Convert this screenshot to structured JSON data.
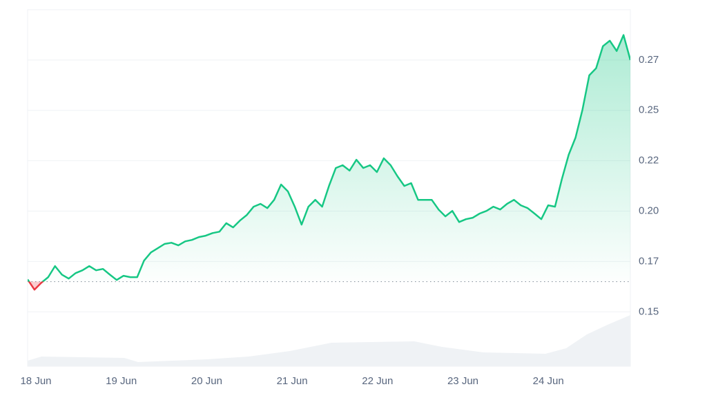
{
  "chart_data": {
    "type": "line",
    "x_labels": [
      "18 Jun",
      "19 Jun",
      "20 Jun",
      "21 Jun",
      "22 Jun",
      "23 Jun",
      "24 Jun"
    ],
    "ylim": [
      0.123,
      0.3
    ],
    "yticks": [
      0.15,
      {
        "value": 0.175,
        "label": "0.17"
      },
      {
        "value": 0.2,
        "label": "0.20"
      },
      {
        "value": 0.225,
        "label": "0.22"
      },
      0.25,
      {
        "value": 0.275,
        "label": "0.27"
      }
    ],
    "grid": true,
    "baseline": 0.165,
    "up_color": "#16c784",
    "down_color": "#ea3943",
    "series": [
      {
        "values": [
          0.1661,
          0.161,
          0.1644,
          0.1672,
          0.1727,
          0.1685,
          0.1665,
          0.1692,
          0.1706,
          0.1727,
          0.1706,
          0.1713,
          0.1685,
          0.1658,
          0.1679,
          0.1672,
          0.1672,
          0.1754,
          0.1795,
          0.1816,
          0.1837,
          0.1843,
          0.183,
          0.185,
          0.1857,
          0.1871,
          0.1878,
          0.1891,
          0.1898,
          0.194,
          0.1919,
          0.1953,
          0.1981,
          0.2022,
          0.2036,
          0.2015,
          0.2056,
          0.2132,
          0.2098,
          0.2022,
          0.1933,
          0.2022,
          0.2056,
          0.2022,
          0.2125,
          0.2214,
          0.2228,
          0.2201,
          0.2255,
          0.2214,
          0.2228,
          0.2194,
          0.2262,
          0.2228,
          0.2173,
          0.2125,
          0.2139,
          0.2056,
          0.2056,
          0.2056,
          0.2008,
          0.1974,
          0.2001,
          0.1946,
          0.196,
          0.1967,
          0.1988,
          0.2001,
          0.2022,
          0.2008,
          0.2036,
          0.2056,
          0.2029,
          0.2015,
          0.1988,
          0.196,
          0.2029,
          0.2022,
          0.2159,
          0.228,
          0.2365,
          0.2503,
          0.2674,
          0.2709,
          0.2819,
          0.2846,
          0.2795,
          0.2874,
          0.275
        ]
      }
    ]
  }
}
